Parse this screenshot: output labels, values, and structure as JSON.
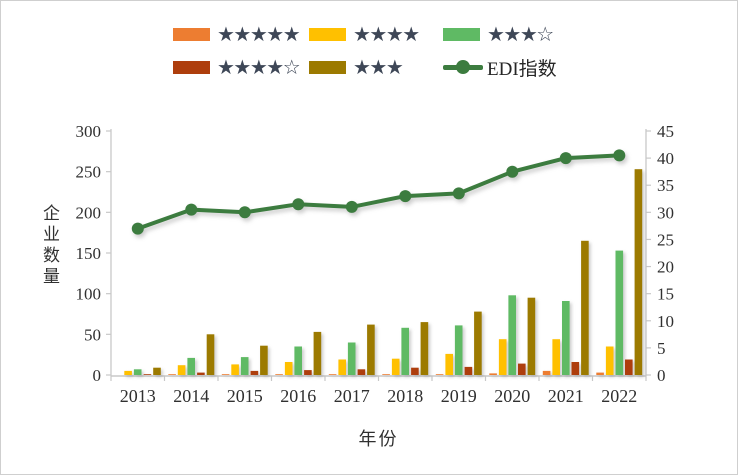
{
  "legend": {
    "items": [
      {
        "id": "five-star",
        "type": "bar",
        "color": "#ED7D31",
        "label": "★★★★★"
      },
      {
        "id": "four-star",
        "type": "bar",
        "color": "#FFC000",
        "label": "★★★★"
      },
      {
        "id": "three-half-star",
        "type": "bar",
        "color": "#5FBA64",
        "label": "★★★☆"
      },
      {
        "id": "four-half-star",
        "type": "bar",
        "color": "#AE3E0D",
        "label": "★★★★☆"
      },
      {
        "id": "three-star",
        "type": "bar",
        "color": "#9C7A00",
        "label": "★★★"
      },
      {
        "id": "edi-index",
        "type": "line",
        "color": "#3C7C3F",
        "label": "EDI指数"
      }
    ]
  },
  "chart_data": {
    "type": "combo (grouped bar + line)",
    "categories": [
      "2013",
      "2014",
      "2015",
      "2016",
      "2017",
      "2018",
      "2019",
      "2020",
      "2021",
      "2022"
    ],
    "bar_series": [
      {
        "name": "★★★★★",
        "color": "#ED7D31",
        "axis": "left",
        "values": [
          0,
          1,
          1,
          1,
          1,
          1,
          1,
          2,
          5,
          3
        ]
      },
      {
        "name": "★★★★",
        "color": "#FFC000",
        "axis": "left",
        "values": [
          5,
          12,
          13,
          16,
          19,
          20,
          26,
          44,
          44,
          35
        ]
      },
      {
        "name": "★★★☆",
        "color": "#5FBA64",
        "axis": "left",
        "values": [
          7,
          21,
          22,
          35,
          40,
          58,
          61,
          98,
          91,
          153
        ]
      },
      {
        "name": "★★★★☆",
        "color": "#AE3E0D",
        "axis": "left",
        "values": [
          1,
          3,
          5,
          6,
          7,
          9,
          10,
          14,
          16,
          19
        ]
      },
      {
        "name": "★★★",
        "color": "#9C7A00",
        "axis": "left",
        "values": [
          9,
          50,
          36,
          53,
          62,
          65,
          78,
          95,
          165,
          253
        ]
      }
    ],
    "line_series": {
      "name": "EDI指数",
      "color": "#3C7C3F",
      "axis": "right",
      "values": [
        27,
        30.5,
        30,
        31.5,
        31,
        33,
        33.5,
        37.5,
        40,
        40.5
      ]
    },
    "left_axis": {
      "label": "企业数量",
      "min": 0,
      "max": 300,
      "step": 50
    },
    "right_axis": {
      "label": "",
      "min": 0,
      "max": 45,
      "step": 5
    },
    "xlabel": "年份",
    "grid": false,
    "legend_position": "top",
    "axis_color": "#c8c8c8"
  }
}
